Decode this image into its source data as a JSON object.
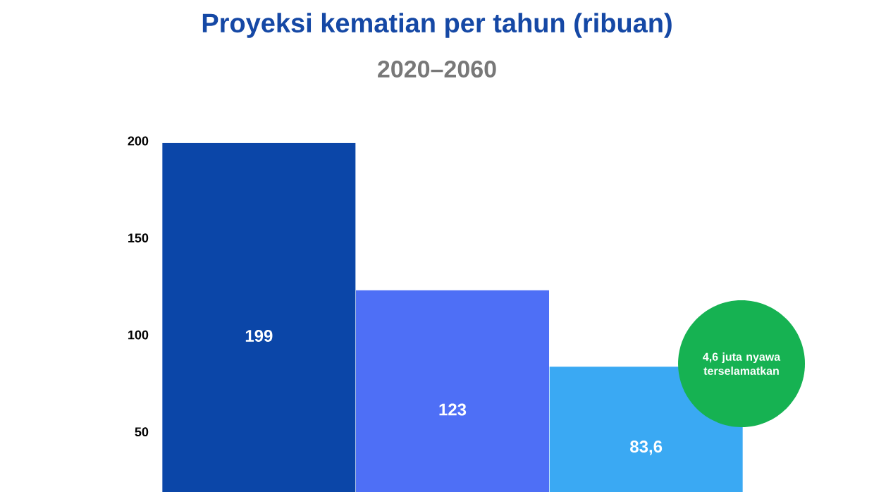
{
  "chart_data": {
    "type": "bar",
    "title": "Proyeksi kematian per tahun (ribuan)",
    "subtitle": "2020–2060",
    "categories": [
      null,
      null,
      null
    ],
    "values": [
      199,
      123,
      83.6
    ],
    "colors": [
      "#0b46a8",
      "#4e6ff6",
      "#3aa9f3"
    ],
    "value_labels": [
      "199",
      "123",
      "83,6"
    ],
    "ylim": [
      19,
      200
    ],
    "yticks": [
      50,
      100,
      150,
      200
    ],
    "tick_labels": "y",
    "annotations": [
      "4,6 juta nyawa terselamatkan"
    ]
  }
}
